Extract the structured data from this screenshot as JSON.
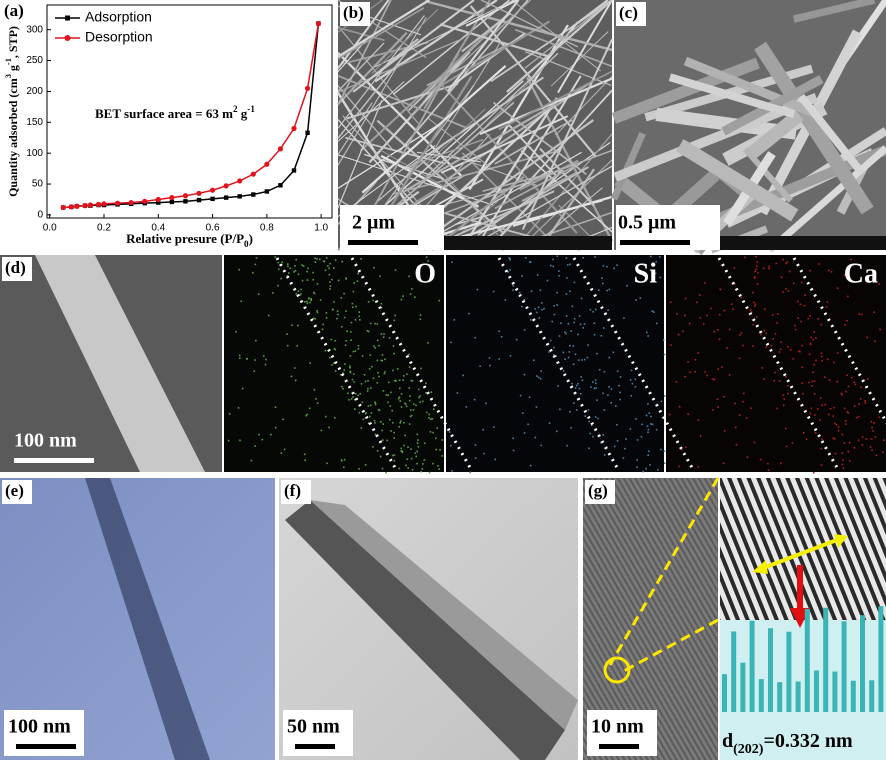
{
  "chart_data": {
    "type": "line",
    "panel_label": "(a)",
    "ylabel_parts": [
      "Quantity adsorbed (cm",
      "3",
      " g",
      "-1",
      ", STP)"
    ],
    "xlabel_parts": [
      "Relative presure (P/P",
      "0",
      ")"
    ],
    "annotation_parts": [
      "BET surface area = 63 m",
      "2",
      " g",
      "-1"
    ],
    "x": [
      0.05,
      0.08,
      0.1,
      0.13,
      0.15,
      0.18,
      0.2,
      0.25,
      0.3,
      0.35,
      0.4,
      0.45,
      0.5,
      0.55,
      0.6,
      0.65,
      0.7,
      0.75,
      0.8,
      0.85,
      0.9,
      0.95,
      0.99
    ],
    "series": [
      {
        "name": "Adsorption",
        "color": "#000000",
        "values": [
          12,
          13,
          14,
          15,
          15,
          16,
          16,
          17,
          18,
          19,
          20,
          21,
          22,
          24,
          26,
          28,
          30,
          33,
          38,
          48,
          72,
          133,
          310
        ]
      },
      {
        "name": "Desorption",
        "color": "#e0141e",
        "values": [
          12,
          13,
          14,
          15,
          16,
          17,
          18,
          19,
          20,
          22,
          25,
          28,
          31,
          35,
          40,
          47,
          55,
          66,
          82,
          107,
          140,
          205,
          310
        ]
      }
    ],
    "xlim": [
      -0.01,
      1.04
    ],
    "ylim": [
      -5,
      340
    ],
    "xticks": [
      {
        "value": 0,
        "label": "0.0"
      },
      {
        "value": 0.2,
        "label": "0.2"
      },
      {
        "value": 0.4,
        "label": "0.4"
      },
      {
        "value": 0.6,
        "label": "0.6"
      },
      {
        "value": 0.8,
        "label": "0.8"
      },
      {
        "value": 1,
        "label": "1.0"
      }
    ],
    "yticks": [
      0,
      50,
      100,
      150,
      200,
      250,
      300
    ],
    "legend": "upper left"
  },
  "panels": {
    "b": {
      "label": "(b)",
      "scale": "2 μm"
    },
    "c": {
      "label": "(c)",
      "scale": "0.5 μm"
    },
    "d": {
      "label": "(d)",
      "scale": "100 nm",
      "elements": [
        "O",
        "Si",
        "Ca"
      ]
    },
    "e": {
      "label": "(e)",
      "scale": "100 nm"
    },
    "f": {
      "label": "(f)",
      "scale": "50 nm"
    },
    "g": {
      "label": "(g)",
      "scale": "10 nm",
      "spacing_parts": [
        "d",
        "(202)",
        "=0.332 nm"
      ]
    }
  }
}
